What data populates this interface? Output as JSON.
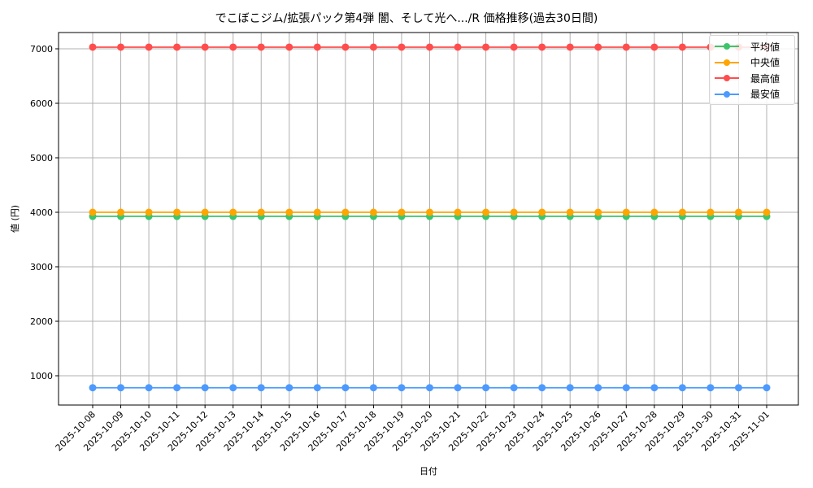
{
  "chart_data": {
    "type": "line",
    "title": "でこぼこジム/拡張パック第4弾 闇、そして光へ.../R 価格推移(過去30日間)",
    "xlabel": "日付",
    "ylabel": "値 (円)",
    "ylim": [
      450,
      7300
    ],
    "yticks": [
      1000,
      2000,
      3000,
      4000,
      5000,
      6000,
      7000
    ],
    "grid": true,
    "legend_position": "upper right",
    "x": [
      "2025-10-08",
      "2025-10-09",
      "2025-10-10",
      "2025-10-11",
      "2025-10-12",
      "2025-10-13",
      "2025-10-14",
      "2025-10-15",
      "2025-10-16",
      "2025-10-17",
      "2025-10-18",
      "2025-10-19",
      "2025-10-20",
      "2025-10-21",
      "2025-10-22",
      "2025-10-23",
      "2025-10-24",
      "2025-10-25",
      "2025-10-26",
      "2025-10-27",
      "2025-10-28",
      "2025-10-29",
      "2025-10-30",
      "2025-10-31",
      "2025-11-01"
    ],
    "series": [
      {
        "name": "平均値",
        "color": "#3cc56b",
        "values": [
          3925,
          3925,
          3925,
          3925,
          3925,
          3925,
          3925,
          3925,
          3925,
          3925,
          3925,
          3925,
          3925,
          3925,
          3925,
          3925,
          3925,
          3925,
          3925,
          3925,
          3925,
          3925,
          3925,
          3925,
          3925
        ]
      },
      {
        "name": "中央値",
        "color": "#ffa500",
        "values": [
          4000,
          4000,
          4000,
          4000,
          4000,
          4000,
          4000,
          4000,
          4000,
          4000,
          4000,
          4000,
          4000,
          4000,
          4000,
          4000,
          4000,
          4000,
          4000,
          4000,
          4000,
          4000,
          4000,
          4000,
          4000
        ]
      },
      {
        "name": "最高値",
        "color": "#ff4d4d",
        "values": [
          7030,
          7030,
          7030,
          7030,
          7030,
          7030,
          7030,
          7030,
          7030,
          7030,
          7030,
          7030,
          7030,
          7030,
          7030,
          7030,
          7030,
          7030,
          7030,
          7030,
          7030,
          7030,
          7030,
          7030,
          7030
        ]
      },
      {
        "name": "最安値",
        "color": "#4d9aff",
        "values": [
          780,
          780,
          780,
          780,
          780,
          780,
          780,
          780,
          780,
          780,
          780,
          780,
          780,
          780,
          780,
          780,
          780,
          780,
          780,
          780,
          780,
          780,
          780,
          780,
          780
        ]
      }
    ]
  }
}
